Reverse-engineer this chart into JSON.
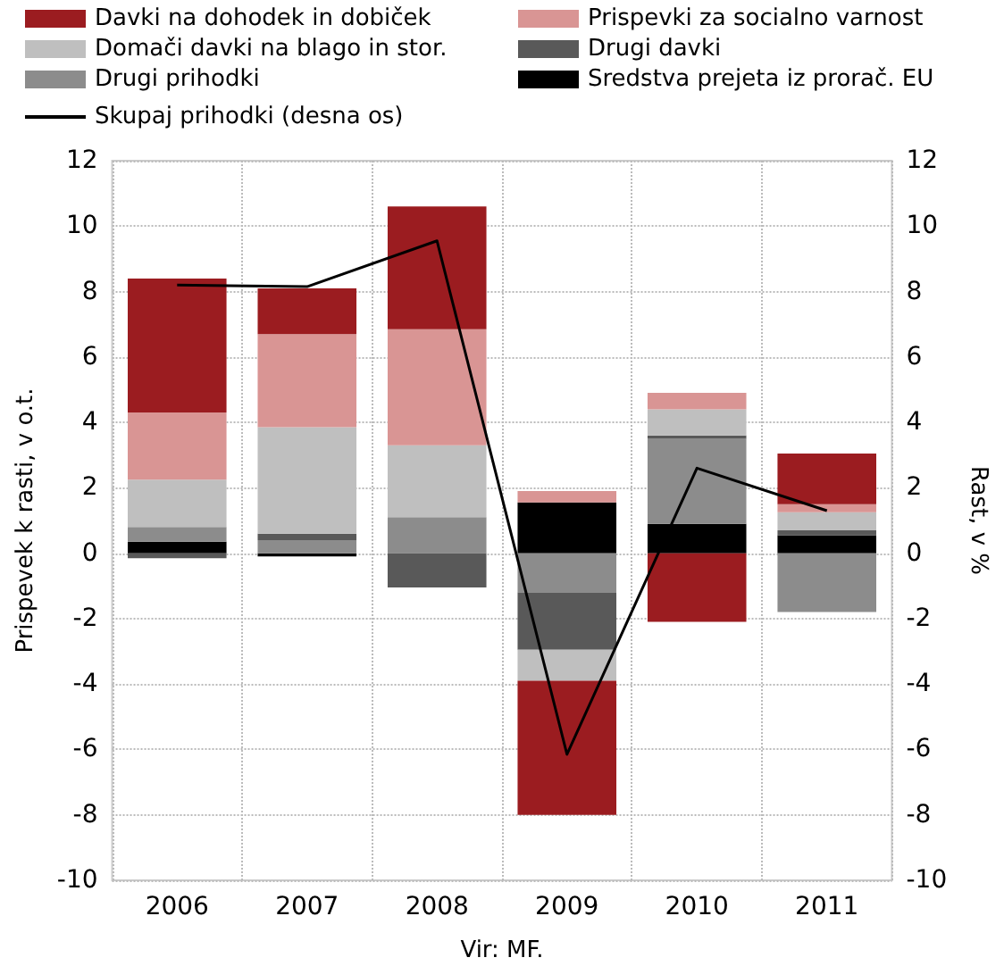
{
  "chart_data": {
    "type": "bar",
    "stacked": true,
    "categories": [
      "2006",
      "2007",
      "2008",
      "2009",
      "2010",
      "2011"
    ],
    "series": [
      {
        "name": "Sredstva prejeta iz prorač. EU",
        "color": "#000000",
        "values": [
          0.35,
          -0.1,
          0,
          1.55,
          0.9,
          0.55
        ]
      },
      {
        "name": "Drugi prihodki",
        "color": "#8c8c8c",
        "values": [
          0.45,
          0.4,
          1.1,
          -1.2,
          2.6,
          -1.8
        ]
      },
      {
        "name": "Drugi davki",
        "color": "#595959",
        "values": [
          -0.15,
          0.2,
          -1.05,
          -1.75,
          0.1,
          0.15
        ]
      },
      {
        "name": "Domači davki na blago in stor.",
        "color": "#bfbfbf",
        "values": [
          1.45,
          3.25,
          2.2,
          -0.95,
          0.8,
          0.55
        ]
      },
      {
        "name": "Prispevki za socialno varnost",
        "color": "#d99594",
        "values": [
          2.05,
          2.85,
          3.55,
          0.35,
          0.5,
          0.25
        ]
      },
      {
        "name": "Davki na dohodek in dobiček",
        "color": "#9b1c20",
        "values": [
          4.1,
          1.4,
          3.75,
          -4.1,
          -2.1,
          1.55
        ]
      },
      {
        "name": "Skupaj prihodki (desna os)",
        "type": "line",
        "axis": "y2",
        "color": "#000000",
        "values": [
          8.2,
          8.15,
          9.55,
          -6.15,
          2.6,
          1.3
        ]
      }
    ],
    "ylabel": "Prispevek k rasti, v o.t.",
    "y2label": "Rast, v %",
    "ylim": [
      -10,
      12
    ],
    "yticks": [
      -10,
      -8,
      -6,
      -4,
      -2,
      0,
      2,
      4,
      6,
      8,
      10,
      12
    ],
    "y2lim": [
      -10,
      12
    ],
    "y2ticks": [
      -10,
      -8,
      -6,
      -4,
      -2,
      0,
      2,
      4,
      6,
      8,
      10,
      12
    ],
    "annotations": [
      "Vir: MF."
    ],
    "grid": true,
    "legend": "top",
    "marker": "none",
    "line_style": "solid"
  }
}
